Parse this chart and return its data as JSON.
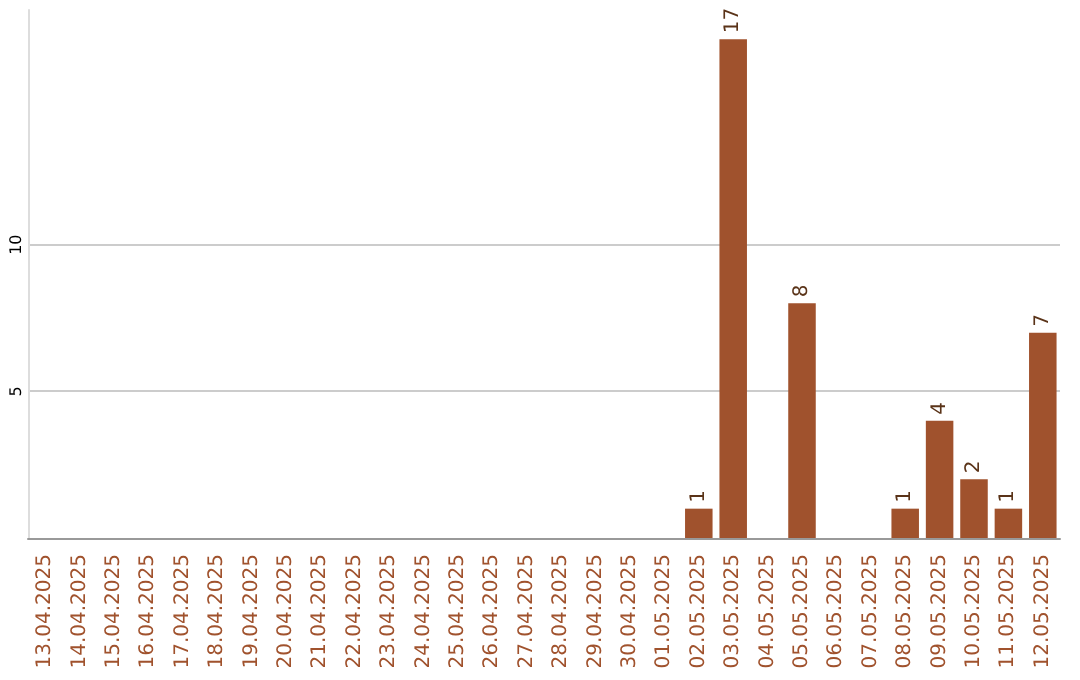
{
  "chart_data": {
    "type": "bar",
    "categories": [
      "13.04.2025",
      "14.04.2025",
      "15.04.2025",
      "16.04.2025",
      "17.04.2025",
      "18.04.2025",
      "19.04.2025",
      "20.04.2025",
      "21.04.2025",
      "22.04.2025",
      "23.04.2025",
      "24.04.2025",
      "25.04.2025",
      "26.04.2025",
      "27.04.2025",
      "28.04.2025",
      "29.04.2025",
      "30.04.2025",
      "01.05.2025",
      "02.05.2025",
      "03.05.2025",
      "04.05.2025",
      "05.05.2025",
      "06.05.2025",
      "07.05.2025",
      "08.05.2025",
      "09.05.2025",
      "10.05.2025",
      "11.05.2025",
      "12.05.2025"
    ],
    "values": [
      0,
      0,
      0,
      0,
      0,
      0,
      0,
      0,
      0,
      0,
      0,
      0,
      0,
      0,
      0,
      0,
      0,
      0,
      0,
      1,
      17,
      0,
      8,
      0,
      0,
      1,
      4,
      2,
      1,
      7
    ],
    "value_labels": [
      null,
      null,
      null,
      null,
      null,
      null,
      null,
      null,
      null,
      null,
      null,
      null,
      null,
      null,
      null,
      null,
      null,
      null,
      null,
      "1",
      "17",
      null,
      "8",
      null,
      null,
      "1",
      "4",
      "2",
      "1",
      "7"
    ],
    "color": "#a0522d",
    "ylim": [
      0,
      18
    ],
    "yticks": [
      5,
      10
    ],
    "grid": "y"
  }
}
